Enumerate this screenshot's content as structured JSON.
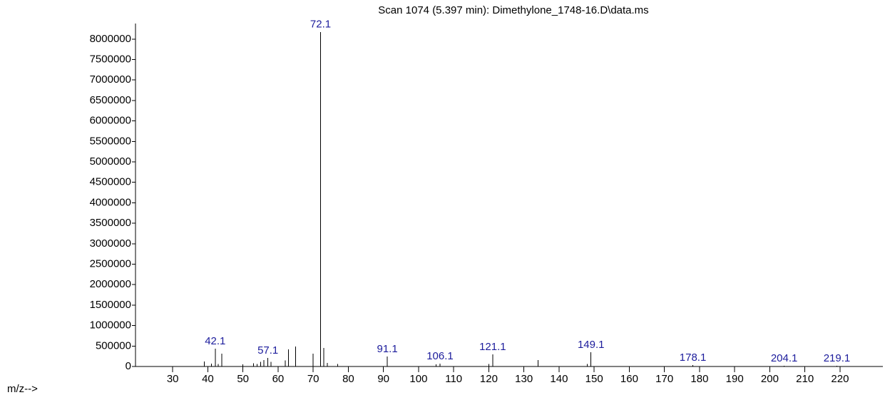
{
  "chart_data": {
    "type": "spectrum",
    "title": "Scan 1074 (5.397 min): Dimethylone_1748-16.D\\data.ms",
    "x_label": "m/z-->",
    "x": [
      39,
      41,
      42.1,
      43,
      44,
      50,
      53,
      54,
      55,
      56,
      57.1,
      58,
      62,
      63,
      65,
      70,
      72.1,
      73,
      74,
      77,
      91.1,
      105,
      106.1,
      120,
      121.1,
      134,
      148,
      149.1,
      178.1,
      204.1,
      219.1
    ],
    "values": [
      122000,
      70000,
      436000,
      60000,
      314000,
      50000,
      80000,
      60000,
      110000,
      160000,
      209000,
      110000,
      150000,
      418000,
      488000,
      314000,
      8175000,
      453000,
      90000,
      60000,
      244000,
      50000,
      70000,
      60000,
      296000,
      157000,
      60000,
      349000,
      35000,
      17000,
      17000
    ],
    "x_labels": [
      null,
      null,
      "42.1",
      null,
      null,
      null,
      null,
      null,
      null,
      null,
      "57.1",
      null,
      null,
      null,
      null,
      null,
      "72.1",
      null,
      null,
      null,
      "91.1",
      null,
      "106.1",
      null,
      "121.1",
      null,
      null,
      "149.1",
      "178.1",
      "204.1",
      "219.1"
    ],
    "color": "#000000",
    "label_color": "#1c1c9c",
    "xlim": [
      19.4,
      232.2
    ],
    "xticks": [
      30,
      40,
      50,
      60,
      70,
      80,
      90,
      100,
      110,
      120,
      130,
      140,
      150,
      160,
      170,
      180,
      190,
      200,
      210,
      220
    ],
    "ylim": [
      0,
      8380000
    ],
    "yticks": [
      0,
      500000,
      1000000,
      1500000,
      2000000,
      2500000,
      3000000,
      3500000,
      4000000,
      4500000,
      5000000,
      5500000,
      6000000,
      6500000,
      7000000,
      7500000,
      8000000
    ]
  }
}
